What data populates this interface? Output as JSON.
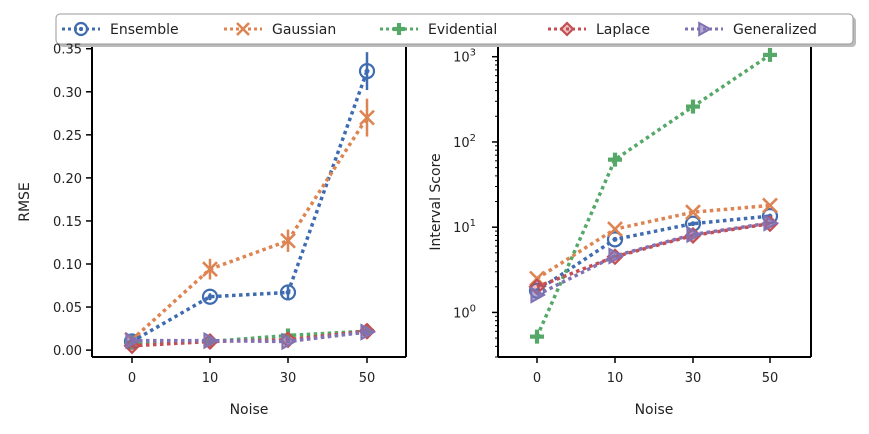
{
  "legend": {
    "placement": "top",
    "entries": [
      {
        "name": "Ensemble",
        "color": "#3f6cb0",
        "marker": "circle"
      },
      {
        "name": "Gaussian",
        "color": "#dd8452",
        "marker": "x"
      },
      {
        "name": "Evidential",
        "color": "#55a868",
        "marker": "plus"
      },
      {
        "name": "Laplace",
        "color": "#c44e52",
        "marker": "diamond"
      },
      {
        "name": "Generalized",
        "color": "#8172b3",
        "marker": "triangle-right"
      }
    ]
  },
  "chart_data": [
    {
      "type": "line",
      "title": "",
      "xlabel": "Noise",
      "ylabel": "RMSE",
      "categories": [
        "0",
        "10",
        "30",
        "50"
      ],
      "yscale": "linear",
      "ylim": [
        -0.008,
        0.352
      ],
      "yticks": [
        "0.00",
        "0.05",
        "0.10",
        "0.15",
        "0.20",
        "0.25",
        "0.30",
        "0.35"
      ],
      "ytick_values": [
        0,
        0.05,
        0.1,
        0.15,
        0.2,
        0.25,
        0.3,
        0.35
      ],
      "grid": false,
      "series": [
        {
          "name": "Ensemble",
          "values": [
            0.01,
            0.062,
            0.067,
            0.324
          ],
          "errors": [
            0.003,
            0.004,
            0.008,
            0.022
          ]
        },
        {
          "name": "Gaussian",
          "values": [
            0.012,
            0.094,
            0.127,
            0.27
          ],
          "errors": [
            0.003,
            0.012,
            0.013,
            0.022
          ]
        },
        {
          "name": "Evidential",
          "values": [
            0.009,
            0.01,
            0.017,
            0.022
          ],
          "errors": [
            0.002,
            0.002,
            0.003,
            0.003
          ]
        },
        {
          "name": "Laplace",
          "values": [
            0.005,
            0.01,
            0.012,
            0.022
          ],
          "errors": [
            0.002,
            0.002,
            0.002,
            0.003
          ]
        },
        {
          "name": "Generalized",
          "values": [
            0.011,
            0.011,
            0.01,
            0.021
          ],
          "errors": [
            0.002,
            0.002,
            0.002,
            0.003
          ]
        }
      ]
    },
    {
      "type": "line",
      "title": "",
      "xlabel": "Noise",
      "ylabel": "Interval Score",
      "categories": [
        "0",
        "10",
        "30",
        "50"
      ],
      "yscale": "log",
      "ylim": [
        0.3,
        1300
      ],
      "yticks": [
        "10^0",
        "10^1",
        "10^2",
        "10^3"
      ],
      "ytick_values": [
        1,
        10,
        100,
        1000
      ],
      "grid": false,
      "series": [
        {
          "name": "Ensemble",
          "values": [
            1.8,
            7.2,
            11.0,
            13.5
          ]
        },
        {
          "name": "Gaussian",
          "values": [
            2.5,
            9.5,
            15.0,
            18.0
          ]
        },
        {
          "name": "Evidential",
          "values": [
            0.52,
            62,
            260,
            1050
          ]
        },
        {
          "name": "Laplace",
          "values": [
            2.0,
            4.5,
            8.0,
            11.0
          ]
        },
        {
          "name": "Generalized",
          "values": [
            1.6,
            4.6,
            8.2,
            11.2
          ]
        }
      ]
    }
  ]
}
